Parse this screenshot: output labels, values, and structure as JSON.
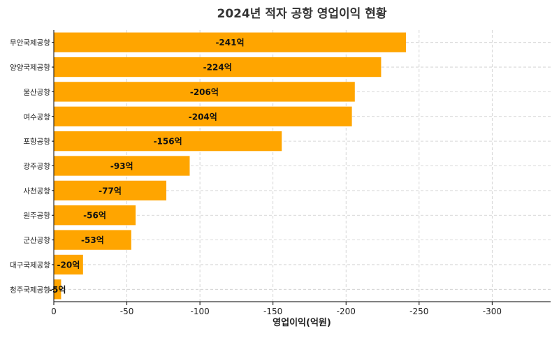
{
  "chart_data": {
    "type": "bar",
    "orientation": "horizontal",
    "title": "2024년 적자 공항 영업이익 현황",
    "xlabel": "영업이익(억원)",
    "ylabel": "",
    "categories": [
      "청주국제공항",
      "대구국제공항",
      "군산공항",
      "원주공항",
      "사천공항",
      "광주공항",
      "포항공항",
      "여수공항",
      "울산공항",
      "양양국제공항",
      "무안국제공항"
    ],
    "values": [
      -5,
      -20,
      -53,
      -56,
      -77,
      -93,
      -156,
      -204,
      -206,
      -224,
      -241
    ],
    "value_labels": [
      "-5억",
      "-20억",
      "-53억",
      "-56억",
      "-77억",
      "-93억",
      "-156억",
      "-204억",
      "-206억",
      "-224억",
      "-241억"
    ],
    "xlim": [
      0,
      -340
    ],
    "xticks": [
      0,
      -50,
      -100,
      -150,
      -200,
      -250,
      -300
    ],
    "xtick_labels": [
      "0",
      "-50",
      "-100",
      "-150",
      "-200",
      "-250",
      "-300"
    ],
    "grid": true,
    "bar_color": "#FFA500"
  }
}
